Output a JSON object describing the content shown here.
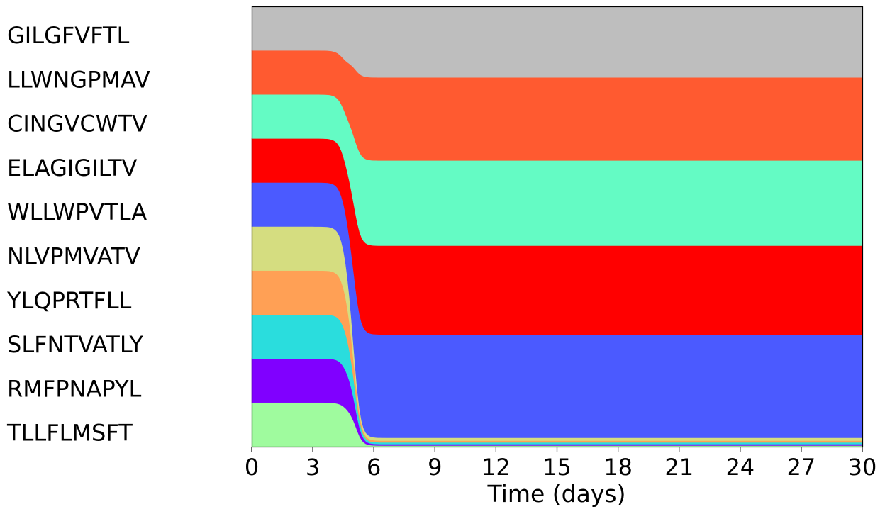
{
  "chart_data": {
    "type": "area",
    "stacked": true,
    "normalized": true,
    "xlabel": "Time (days)",
    "ylabel": "",
    "xlim": [
      0,
      30
    ],
    "ylim": [
      0,
      1
    ],
    "xticks": [
      "0",
      "3",
      "6",
      "9",
      "12",
      "15",
      "18",
      "21",
      "24",
      "27",
      "30"
    ],
    "legend_placement": "left",
    "series": [
      {
        "name": "GILGFVFTL",
        "color": "#bebebe",
        "start": 0.1,
        "end": 0.1613,
        "t_mid": 4.55,
        "width": 0.18
      },
      {
        "name": "LLWNGPMAV",
        "color": "#ff5a30",
        "start": 0.1,
        "end": 0.1887,
        "t_mid": 4.7,
        "width": 0.18
      },
      {
        "name": "CINGVCWTV",
        "color": "#64fbc4",
        "start": 0.1,
        "end": 0.1935,
        "t_mid": 4.78,
        "width": 0.18
      },
      {
        "name": "ELAGIGILTV",
        "color": "#ff0000",
        "start": 0.1,
        "end": 0.2016,
        "t_mid": 4.82,
        "width": 0.17
      },
      {
        "name": "WLLWPVTLA",
        "color": "#4b5aff",
        "start": 0.1,
        "end": 0.2347,
        "t_mid": 4.88,
        "width": 0.17
      },
      {
        "name": "NLVPMVATV",
        "color": "#d5dd80",
        "start": 0.1,
        "end": 0.0065,
        "t_mid": 4.9,
        "width": 0.16
      },
      {
        "name": "YLQPRTFLL",
        "color": "#ffa055",
        "start": 0.1,
        "end": 0.004,
        "t_mid": 4.95,
        "width": 0.16
      },
      {
        "name": "SLFNTVATLY",
        "color": "#2adddd",
        "start": 0.1,
        "end": 0.004,
        "t_mid": 5.0,
        "width": 0.16
      },
      {
        "name": "RMFPNAPYL",
        "color": "#8000ff",
        "start": 0.1,
        "end": 0.0032,
        "t_mid": 5.05,
        "width": 0.16
      },
      {
        "name": "TLLFLMSFT",
        "color": "#9ffb9e",
        "start": 0.1,
        "end": 0.0025,
        "t_mid": 5.1,
        "width": 0.16
      }
    ]
  }
}
